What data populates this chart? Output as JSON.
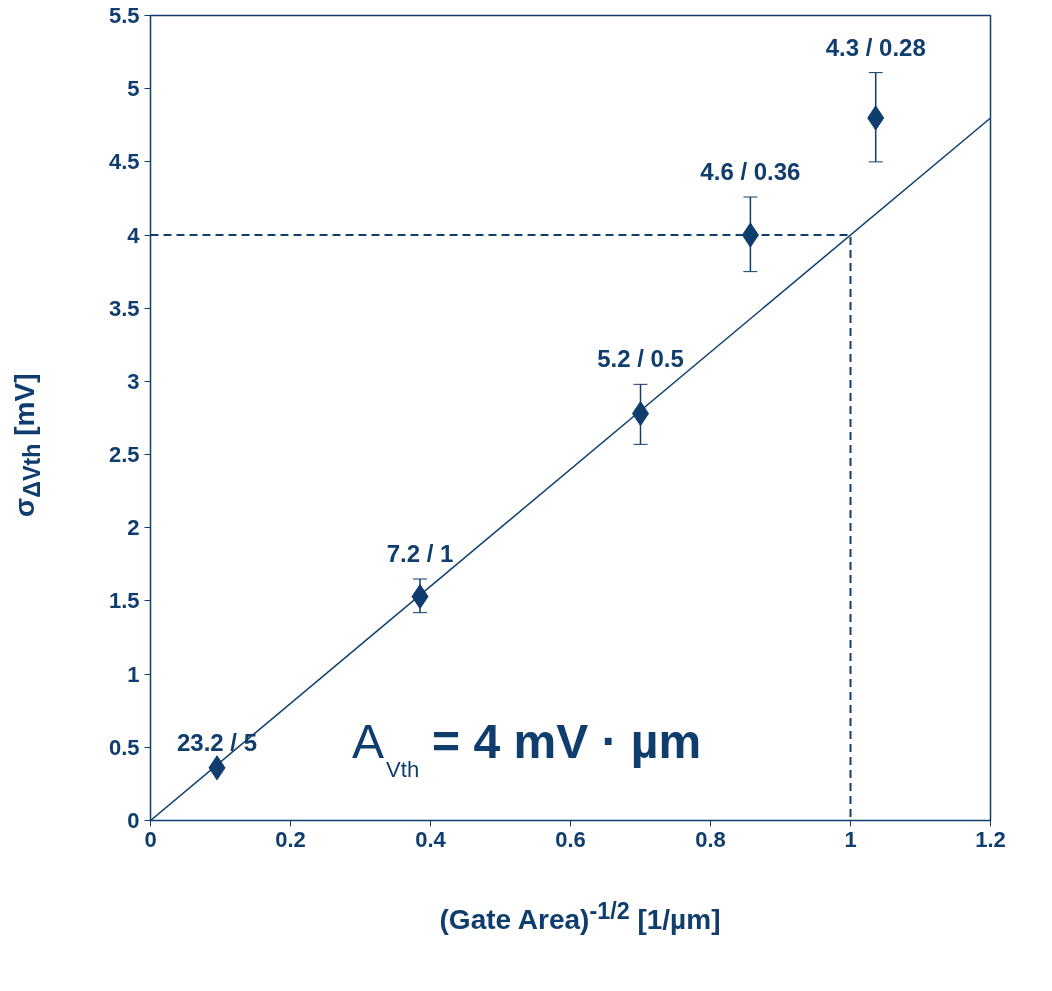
{
  "chart_data": {
    "type": "scatter",
    "xlabel": "(Gate Area)$^{-1/2}$ [1/µm]",
    "ylabel": "σ$_{ΔVth}$ [mV]",
    "xlim": [
      0,
      1.2
    ],
    "ylim": [
      0,
      5.5
    ],
    "xticks": [
      0,
      0.2,
      0.4,
      0.6,
      0.8,
      1,
      1.2
    ],
    "yticks": [
      0,
      0.5,
      1,
      1.5,
      2,
      2.5,
      3,
      3.5,
      4,
      4.5,
      5,
      5.5
    ],
    "grid": false,
    "series": [
      {
        "marker": "diamond",
        "color": "#0f3d6e",
        "x": [
          0.095,
          0.385,
          0.7,
          0.857,
          1.036
        ],
        "values": [
          0.36,
          1.53,
          2.78,
          4.0,
          4.8
        ],
        "errors": [
          null,
          [
            1.42,
            1.65
          ],
          [
            2.57,
            2.98
          ],
          [
            3.75,
            4.26
          ],
          [
            4.5,
            5.11
          ]
        ]
      },
      {
        "type": "line",
        "color": "#0f3d6e",
        "x": [
          0,
          1.2
        ],
        "values": [
          0,
          4.8
        ],
        "line_style": "solid"
      },
      {
        "type": "line",
        "color": "#0f3d6e",
        "x": [
          0,
          1,
          1
        ],
        "values": [
          4,
          4,
          0
        ],
        "line_style": "dashed"
      }
    ],
    "annotations": [
      "23.2 / 5",
      "7.2 / 1",
      "5.2 / 0.5",
      "4.6 / 0.36",
      "4.3 / 0.28",
      "A$_{Vth}$ = 4 mV · µm"
    ]
  }
}
